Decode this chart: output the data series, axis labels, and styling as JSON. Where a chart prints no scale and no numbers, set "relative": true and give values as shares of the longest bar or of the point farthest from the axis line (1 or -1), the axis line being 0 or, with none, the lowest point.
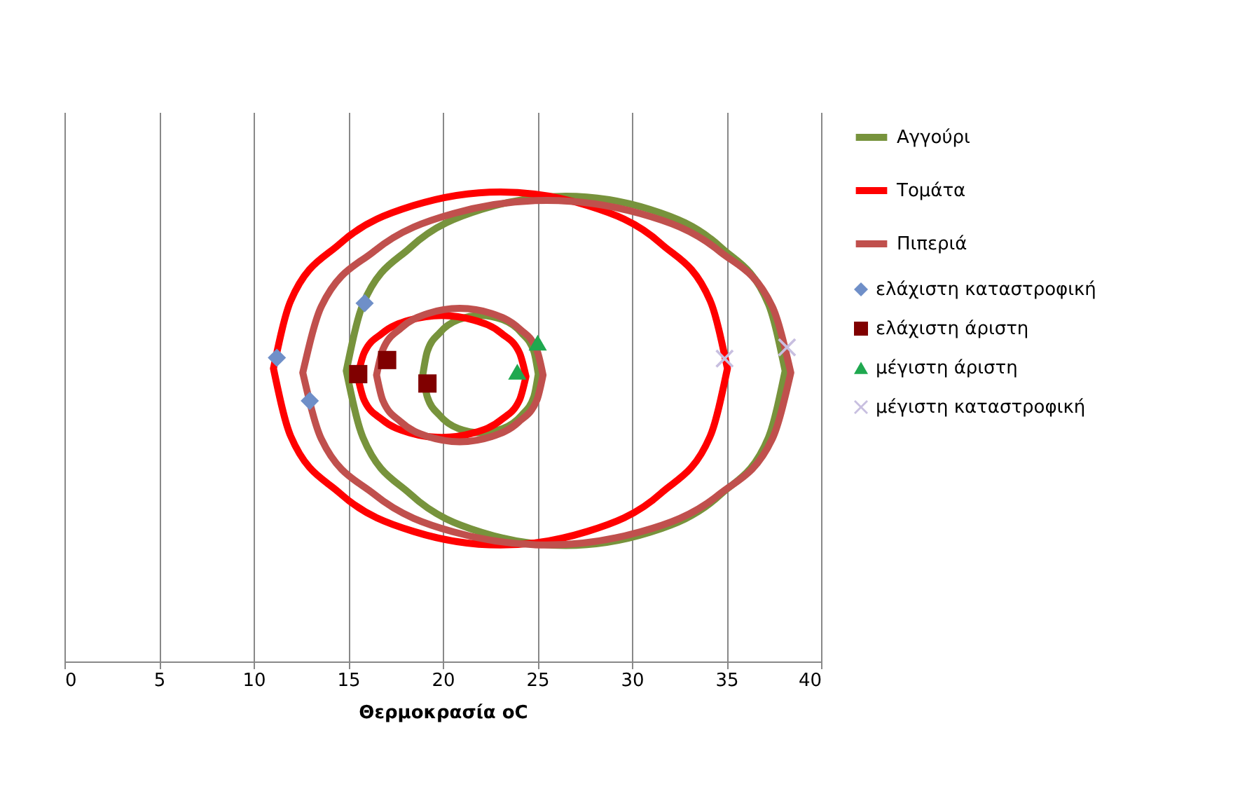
{
  "chart_data": {
    "type": "line",
    "xlabel": "Θερμοκρασία oC",
    "relative": true,
    "xlim": [
      0,
      40
    ],
    "xticks": [
      0,
      5,
      10,
      15,
      20,
      25,
      30,
      35,
      40
    ],
    "grid": "x",
    "legend": "right",
    "series": [
      {
        "type": "line",
        "name": "Αγγούρι",
        "color": "#77933c",
        "x": [
          14.9,
          15.78,
          18.3,
          22.06,
          26.5,
          30.94,
          34.7,
          37.22,
          38.1,
          null,
          14.9,
          15.78,
          18.3,
          22.06,
          26.5,
          30.94,
          34.7,
          37.22,
          38.1,
          null,
          18.95,
          19.18,
          19.84,
          20.83,
          22,
          23.17,
          24.16,
          24.82,
          25.05,
          null,
          18.95,
          19.18,
          19.84,
          20.83,
          22,
          23.17,
          24.16,
          24.82,
          25.05
        ],
        "values": [
          0.619,
          0.761,
          0.882,
          0.963,
          0.991,
          0.963,
          0.882,
          0.761,
          0.619,
          null,
          0.619,
          0.477,
          0.356,
          0.275,
          0.247,
          0.275,
          0.356,
          0.477,
          0.619,
          null,
          0.612,
          0.66,
          0.7,
          0.728,
          0.737,
          0.728,
          0.7,
          0.66,
          0.612,
          null,
          0.612,
          0.564,
          0.524,
          0.496,
          0.487,
          0.496,
          0.524,
          0.564,
          0.612
        ]
      },
      {
        "type": "line",
        "name": "Τομάτα",
        "color": "#ff0000",
        "x": [
          11.05,
          11.96,
          14.57,
          18.45,
          23.05,
          27.65,
          31.53,
          34.14,
          35.05,
          null,
          11.05,
          11.96,
          14.57,
          18.45,
          23.05,
          27.65,
          31.53,
          34.14,
          35.05,
          null,
          15.5,
          15.84,
          16.8,
          18.25,
          19.95,
          21.65,
          23.1,
          24.06,
          24.4,
          null,
          15.5,
          15.84,
          16.8,
          18.25,
          19.95,
          21.65,
          23.1,
          24.06,
          24.4
        ],
        "values": [
          0.624,
          0.768,
          0.89,
          0.971,
          1.0,
          0.971,
          0.89,
          0.768,
          0.624,
          null,
          0.624,
          0.48,
          0.358,
          0.277,
          0.248,
          0.277,
          0.358,
          0.48,
          0.624,
          null,
          0.607,
          0.657,
          0.699,
          0.727,
          0.737,
          0.727,
          0.699,
          0.657,
          0.607,
          null,
          0.607,
          0.557,
          0.515,
          0.487,
          0.477,
          0.487,
          0.515,
          0.557,
          0.607
        ]
      },
      {
        "type": "line",
        "name": "Πιπεριά",
        "color": "#c0504d",
        "x": [
          12.6,
          13.58,
          16.38,
          20.56,
          25.5,
          30.44,
          34.62,
          37.42,
          38.4,
          null,
          12.6,
          13.58,
          16.38,
          20.56,
          25.5,
          30.44,
          34.62,
          37.42,
          38.4,
          null,
          16.5,
          16.83,
          17.79,
          19.21,
          20.9,
          22.59,
          24.01,
          24.97,
          25.3,
          null,
          16.5,
          16.83,
          17.79,
          19.21,
          20.9,
          22.59,
          24.01,
          24.97,
          25.3
        ],
        "values": [
          0.615,
          0.756,
          0.874,
          0.954,
          0.982,
          0.954,
          0.874,
          0.756,
          0.615,
          null,
          0.615,
          0.474,
          0.356,
          0.276,
          0.248,
          0.276,
          0.356,
          0.474,
          0.615,
          null,
          0.61,
          0.664,
          0.71,
          0.741,
          0.752,
          0.741,
          0.71,
          0.664,
          0.61,
          null,
          0.61,
          0.556,
          0.51,
          0.479,
          0.468,
          0.479,
          0.51,
          0.556,
          0.61
        ]
      },
      {
        "type": "scatter",
        "name": "ελάχιστη καταστροφική",
        "color": "#6f8fc8",
        "marker": "diamond",
        "x": [
          11.23,
          15.87,
          12.97
        ],
        "values": [
          0.647,
          0.763,
          0.555
        ]
      },
      {
        "type": "scatter",
        "name": "ελάχιστη άριστη",
        "color": "#800000",
        "marker": "square",
        "x": [
          15.53,
          17.06,
          19.19
        ],
        "values": [
          0.612,
          0.642,
          0.592
        ]
      },
      {
        "type": "scatter",
        "name": "μέγιστη άριστη",
        "color": "#1fa84f",
        "marker": "triangle",
        "x": [
          25.02,
          23.94
        ],
        "values": [
          0.679,
          0.617
        ]
      },
      {
        "type": "scatter",
        "name": "μέγιστη καταστροφική",
        "color": "#c8bfe0",
        "marker": "cross",
        "x": [
          34.9,
          38.2
        ],
        "values": [
          0.645,
          0.669
        ]
      }
    ]
  }
}
